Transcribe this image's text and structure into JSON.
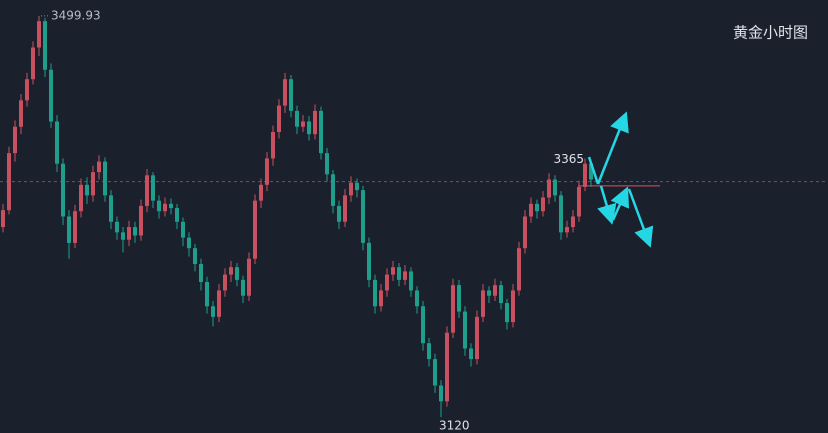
{
  "chart_data": {
    "type": "candlestick",
    "title": "黄金小时图",
    "ylim": [
      3105,
      3515
    ],
    "up_color": "#c9505f",
    "down_color": "#1f9e8c",
    "h_lines": [
      {
        "value": 3343,
        "color": "#8a4650",
        "dashed": true
      },
      {
        "value": 3339,
        "color": "#e0505e",
        "dashed": false
      }
    ],
    "labels": {
      "high": "chart_data.ohlc.6.1",
      "low": "chart_data.ohlc.73.2",
      "recent": "chart_data.ohlc.97.1"
    },
    "ohlc": [
      [
        3300,
        3322,
        3295,
        3316
      ],
      [
        3316,
        3376,
        3312,
        3370
      ],
      [
        3370,
        3401,
        3362,
        3395
      ],
      [
        3395,
        3426,
        3388,
        3420
      ],
      [
        3420,
        3446,
        3414,
        3440
      ],
      [
        3440,
        3476,
        3435,
        3470
      ],
      [
        3470,
        3499.93,
        3462,
        3495
      ],
      [
        3495,
        3498,
        3442,
        3449
      ],
      [
        3449,
        3455,
        3394,
        3400
      ],
      [
        3400,
        3406,
        3352,
        3360
      ],
      [
        3360,
        3365,
        3302,
        3310
      ],
      [
        3310,
        3316,
        3270,
        3285
      ],
      [
        3285,
        3321,
        3280,
        3315
      ],
      [
        3315,
        3346,
        3309,
        3340
      ],
      [
        3340,
        3347,
        3322,
        3330
      ],
      [
        3330,
        3358,
        3324,
        3352
      ],
      [
        3352,
        3368,
        3345,
        3362
      ],
      [
        3362,
        3366,
        3324,
        3330
      ],
      [
        3330,
        3335,
        3298,
        3305
      ],
      [
        3305,
        3310,
        3288,
        3295
      ],
      [
        3295,
        3300,
        3276,
        3288
      ],
      [
        3288,
        3306,
        3282,
        3300
      ],
      [
        3300,
        3305,
        3285,
        3292
      ],
      [
        3292,
        3326,
        3287,
        3320
      ],
      [
        3320,
        3355,
        3314,
        3349
      ],
      [
        3349,
        3352,
        3318,
        3325
      ],
      [
        3325,
        3330,
        3308,
        3315
      ],
      [
        3315,
        3328,
        3310,
        3322
      ],
      [
        3322,
        3327,
        3312,
        3318
      ],
      [
        3318,
        3322,
        3298,
        3305
      ],
      [
        3305,
        3309,
        3282,
        3290
      ],
      [
        3290,
        3295,
        3272,
        3280
      ],
      [
        3280,
        3284,
        3258,
        3265
      ],
      [
        3265,
        3270,
        3240,
        3248
      ],
      [
        3248,
        3253,
        3218,
        3225
      ],
      [
        3225,
        3230,
        3206,
        3215
      ],
      [
        3215,
        3246,
        3210,
        3240
      ],
      [
        3240,
        3261,
        3234,
        3255
      ],
      [
        3255,
        3268,
        3248,
        3262
      ],
      [
        3262,
        3266,
        3244,
        3250
      ],
      [
        3250,
        3254,
        3228,
        3235
      ],
      [
        3235,
        3276,
        3230,
        3270
      ],
      [
        3270,
        3331,
        3265,
        3325
      ],
      [
        3325,
        3346,
        3318,
        3340
      ],
      [
        3340,
        3371,
        3334,
        3365
      ],
      [
        3365,
        3396,
        3358,
        3390
      ],
      [
        3390,
        3421,
        3384,
        3415
      ],
      [
        3415,
        3446,
        3408,
        3440
      ],
      [
        3440,
        3444,
        3404,
        3410
      ],
      [
        3410,
        3415,
        3388,
        3395
      ],
      [
        3395,
        3406,
        3390,
        3400
      ],
      [
        3400,
        3405,
        3382,
        3388
      ],
      [
        3388,
        3416,
        3383,
        3410
      ],
      [
        3410,
        3414,
        3364,
        3370
      ],
      [
        3370,
        3375,
        3343,
        3350
      ],
      [
        3350,
        3354,
        3313,
        3320
      ],
      [
        3320,
        3325,
        3298,
        3305
      ],
      [
        3305,
        3336,
        3300,
        3330
      ],
      [
        3330,
        3348,
        3324,
        3342
      ],
      [
        3342,
        3346,
        3328,
        3335
      ],
      [
        3335,
        3339,
        3278,
        3285
      ],
      [
        3285,
        3290,
        3243,
        3250
      ],
      [
        3250,
        3255,
        3218,
        3225
      ],
      [
        3225,
        3246,
        3220,
        3240
      ],
      [
        3240,
        3261,
        3234,
        3255
      ],
      [
        3255,
        3268,
        3249,
        3262
      ],
      [
        3262,
        3266,
        3244,
        3250
      ],
      [
        3250,
        3264,
        3245,
        3258
      ],
      [
        3258,
        3262,
        3234,
        3240
      ],
      [
        3240,
        3244,
        3218,
        3225
      ],
      [
        3225,
        3230,
        3183,
        3190
      ],
      [
        3190,
        3195,
        3168,
        3175
      ],
      [
        3175,
        3180,
        3143,
        3150
      ],
      [
        3150,
        3155,
        3120,
        3135
      ],
      [
        3135,
        3206,
        3130,
        3200
      ],
      [
        3200,
        3251,
        3195,
        3245
      ],
      [
        3245,
        3250,
        3214,
        3220
      ],
      [
        3220,
        3225,
        3178,
        3185
      ],
      [
        3185,
        3190,
        3168,
        3175
      ],
      [
        3175,
        3221,
        3170,
        3215
      ],
      [
        3215,
        3246,
        3210,
        3240
      ],
      [
        3240,
        3244,
        3228,
        3235
      ],
      [
        3235,
        3251,
        3230,
        3245
      ],
      [
        3245,
        3249,
        3222,
        3228
      ],
      [
        3228,
        3232,
        3203,
        3210
      ],
      [
        3210,
        3246,
        3205,
        3240
      ],
      [
        3240,
        3286,
        3235,
        3280
      ],
      [
        3280,
        3316,
        3275,
        3310
      ],
      [
        3310,
        3328,
        3304,
        3322
      ],
      [
        3322,
        3326,
        3308,
        3315
      ],
      [
        3315,
        3334,
        3310,
        3328
      ],
      [
        3328,
        3351,
        3322,
        3345
      ],
      [
        3345,
        3349,
        3324,
        3330
      ],
      [
        3330,
        3334,
        3288,
        3295
      ],
      [
        3295,
        3306,
        3290,
        3300
      ],
      [
        3300,
        3316,
        3295,
        3310
      ],
      [
        3310,
        3344,
        3305,
        3338
      ],
      [
        3338,
        3365,
        3334,
        3360
      ],
      [
        3360,
        3364,
        3338,
        3345
      ]
    ]
  }
}
